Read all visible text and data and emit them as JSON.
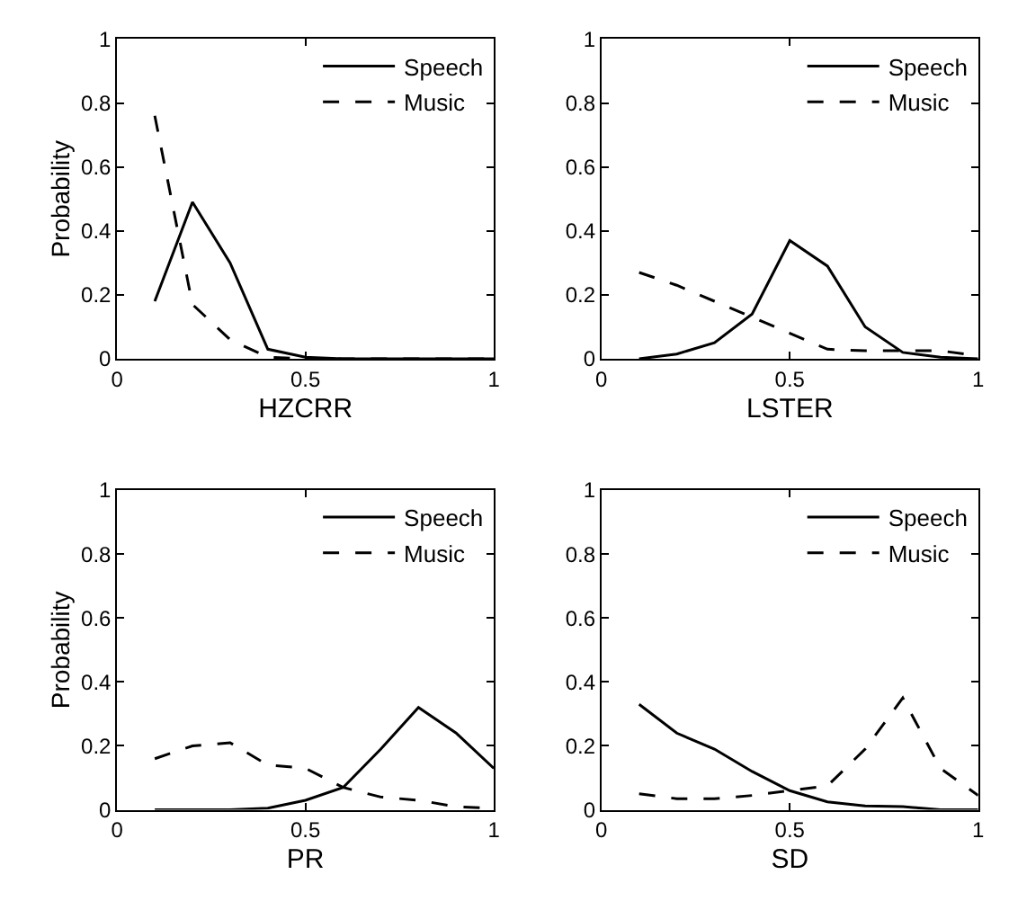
{
  "chart_data": [
    {
      "type": "line",
      "xlabel": "HZCRR",
      "ylabel": "Probability",
      "x": [
        0.1,
        0.2,
        0.3,
        0.4,
        0.5,
        0.6,
        0.7,
        0.8,
        0.9,
        1.0
      ],
      "xlim": [
        0,
        1
      ],
      "xticks": [
        0,
        0.5,
        1
      ],
      "ylim": [
        0,
        1
      ],
      "yticks": [
        0,
        0.2,
        0.4,
        0.6,
        0.8,
        1
      ],
      "legend": "top right",
      "series": [
        {
          "name": "Speech",
          "color": "#000000",
          "line_style": "solid",
          "values": [
            0.18,
            0.49,
            0.3,
            0.03,
            0.005,
            0,
            0,
            0,
            0,
            0
          ]
        },
        {
          "name": "Music",
          "color": "#000000",
          "line_style": "dashed",
          "values": [
            0.76,
            0.17,
            0.06,
            0.005,
            0,
            0,
            0,
            0,
            0,
            0
          ]
        }
      ]
    },
    {
      "type": "line",
      "xlabel": "LSTER",
      "x": [
        0.1,
        0.2,
        0.3,
        0.4,
        0.5,
        0.6,
        0.7,
        0.8,
        0.9,
        1.0
      ],
      "xlim": [
        0,
        1
      ],
      "xticks": [
        0,
        0.5,
        1
      ],
      "ylim": [
        0,
        1
      ],
      "yticks": [
        0,
        0.2,
        0.4,
        0.6,
        0.8,
        1
      ],
      "legend": "top right",
      "series": [
        {
          "name": "Speech",
          "color": "#000000",
          "line_style": "solid",
          "values": [
            0,
            0.015,
            0.05,
            0.14,
            0.37,
            0.29,
            0.1,
            0.02,
            0.005,
            0
          ]
        },
        {
          "name": "Music",
          "color": "#000000",
          "line_style": "dashed",
          "values": [
            0.27,
            0.23,
            0.18,
            0.13,
            0.08,
            0.03,
            0.025,
            0.025,
            0.025,
            0.01
          ]
        }
      ]
    },
    {
      "type": "line",
      "xlabel": "PR",
      "ylabel": "Probability",
      "x": [
        0.1,
        0.2,
        0.3,
        0.4,
        0.5,
        0.6,
        0.7,
        0.8,
        0.9,
        1.0
      ],
      "xlim": [
        0,
        1
      ],
      "xticks": [
        0,
        0.5,
        1
      ],
      "ylim": [
        0,
        1
      ],
      "yticks": [
        0,
        0.2,
        0.4,
        0.6,
        0.8,
        1
      ],
      "legend": "top right",
      "series": [
        {
          "name": "Speech",
          "color": "#000000",
          "line_style": "solid",
          "values": [
            0,
            0,
            0,
            0.005,
            0.03,
            0.07,
            0.19,
            0.32,
            0.24,
            0.13
          ]
        },
        {
          "name": "Music",
          "color": "#000000",
          "line_style": "dashed",
          "values": [
            0.16,
            0.2,
            0.21,
            0.14,
            0.13,
            0.07,
            0.04,
            0.03,
            0.01,
            0.005
          ]
        }
      ]
    },
    {
      "type": "line",
      "xlabel": "SD",
      "x": [
        0.1,
        0.2,
        0.3,
        0.4,
        0.5,
        0.6,
        0.7,
        0.8,
        0.9,
        1.0
      ],
      "xlim": [
        0,
        1
      ],
      "xticks": [
        0,
        0.5,
        1
      ],
      "ylim": [
        0,
        1
      ],
      "yticks": [
        0,
        0.2,
        0.4,
        0.6,
        0.8,
        1
      ],
      "legend": "top right",
      "series": [
        {
          "name": "Speech",
          "color": "#000000",
          "line_style": "solid",
          "values": [
            0.33,
            0.24,
            0.19,
            0.12,
            0.06,
            0.025,
            0.012,
            0.01,
            0,
            0
          ]
        },
        {
          "name": "Music",
          "color": "#000000",
          "line_style": "dashed",
          "values": [
            0.05,
            0.035,
            0.035,
            0.045,
            0.06,
            0.075,
            0.19,
            0.35,
            0.13,
            0.045
          ]
        }
      ]
    }
  ]
}
